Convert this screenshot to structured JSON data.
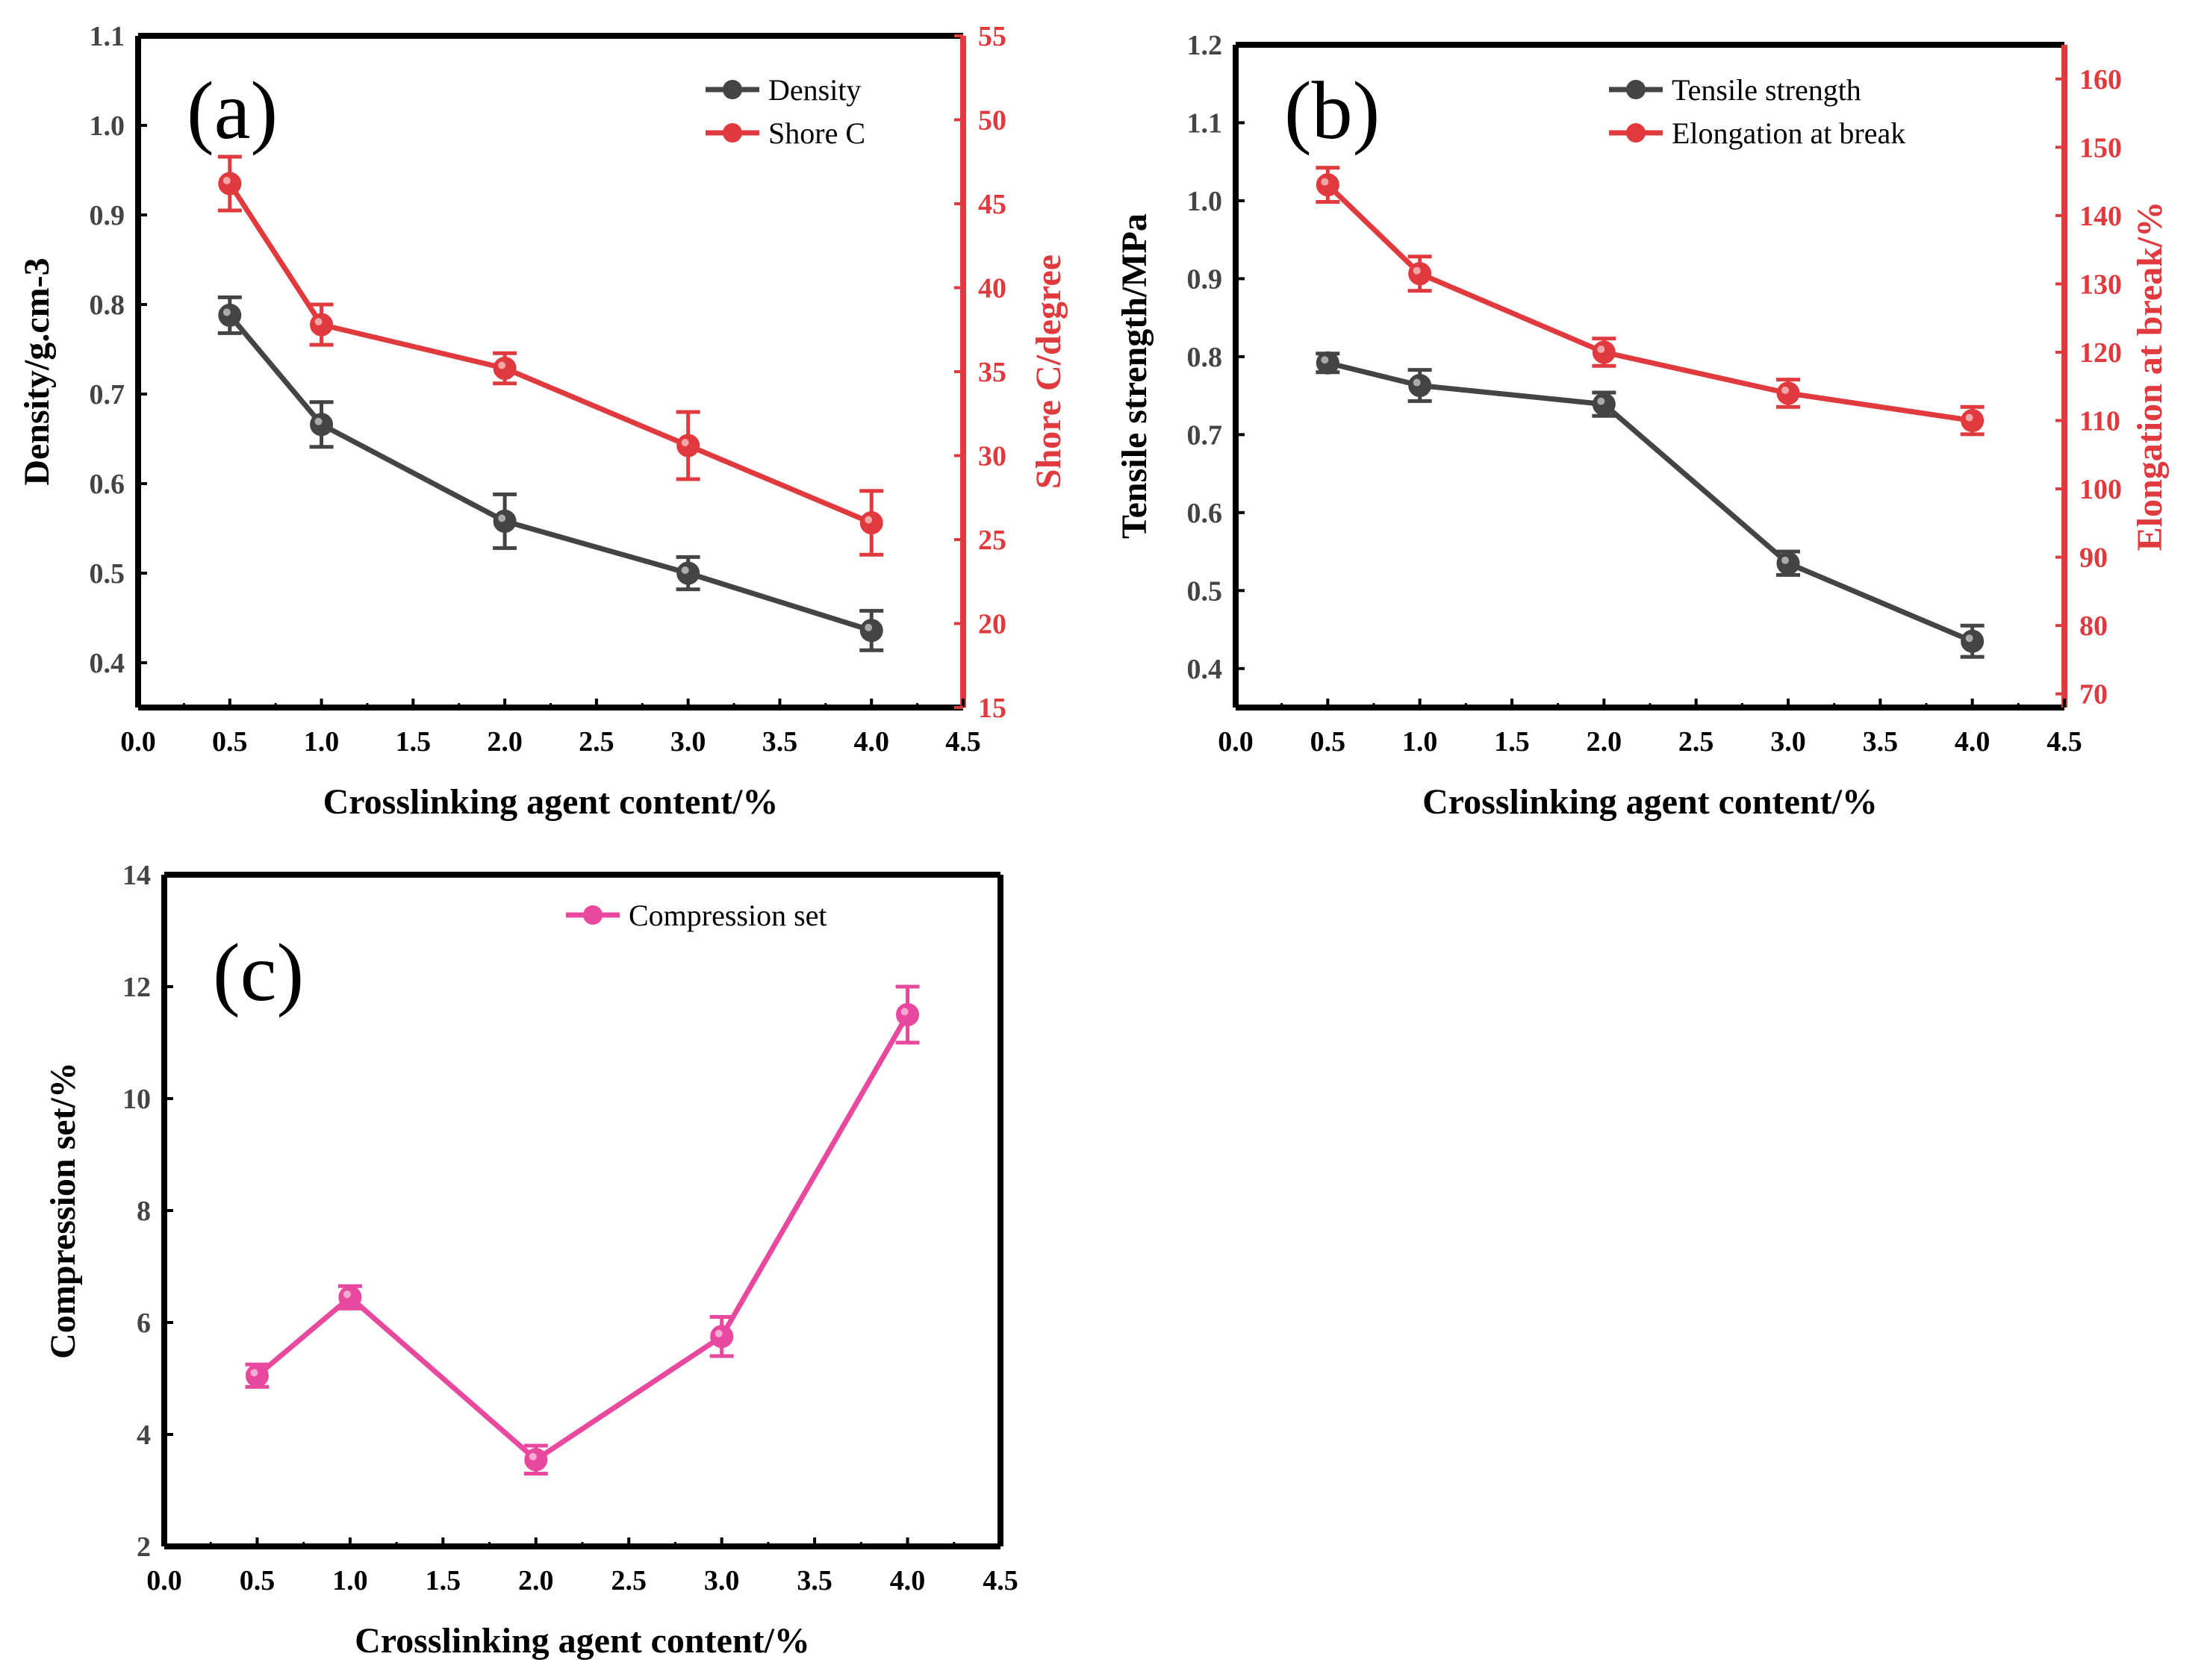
{
  "chart_data": [
    {
      "panel_label": "(a)",
      "type": "line",
      "xlabel": "Crosslinking agent content/%",
      "xlim": [
        0.0,
        4.5
      ],
      "xticks": [
        "0.0",
        "0.5",
        "1.0",
        "1.5",
        "2.0",
        "2.5",
        "3.0",
        "3.5",
        "4.0",
        "4.5"
      ],
      "ylabel": "Density/g.cm-3",
      "ylim": [
        0.35,
        1.1
      ],
      "yticks": [
        "0.4",
        "0.5",
        "0.6",
        "0.7",
        "0.8",
        "0.9",
        "1.0",
        "1.1"
      ],
      "y2label": "Shore C/degree",
      "y2lim": [
        15,
        55
      ],
      "y2ticks": [
        "15",
        "20",
        "25",
        "30",
        "35",
        "40",
        "45",
        "50",
        "55"
      ],
      "y2_color": "#e03a3e",
      "legend_position": "top-right",
      "grid": false,
      "series": [
        {
          "name": "Density",
          "axis": "left",
          "color": "#444444",
          "x": [
            0.5,
            1.0,
            2.0,
            3.0,
            4.0
          ],
          "values": [
            0.788,
            0.666,
            0.558,
            0.5,
            0.436
          ],
          "errors": [
            0.02,
            0.025,
            0.03,
            0.018,
            0.022
          ]
        },
        {
          "name": "Shore C",
          "axis": "right",
          "color": "#e03a3e",
          "x": [
            0.5,
            1.0,
            2.0,
            3.0,
            4.0
          ],
          "values": [
            46.2,
            37.8,
            35.2,
            30.6,
            26.0
          ],
          "errors": [
            1.6,
            1.2,
            0.9,
            2.0,
            1.9
          ]
        }
      ]
    },
    {
      "panel_label": "(b)",
      "type": "line",
      "xlabel": "Crosslinking agent content/%",
      "xlim": [
        0.0,
        4.5
      ],
      "xticks": [
        "0.0",
        "0.5",
        "1.0",
        "1.5",
        "2.0",
        "2.5",
        "3.0",
        "3.5",
        "4.0",
        "4.5"
      ],
      "ylabel": "Tensile strength/MPa",
      "ylim": [
        0.35,
        1.2
      ],
      "yticks": [
        "0.4",
        "0.5",
        "0.6",
        "0.7",
        "0.8",
        "0.9",
        "1.0",
        "1.1",
        "1.2"
      ],
      "y2label": "Elongation at break/%",
      "y2lim": [
        68,
        165
      ],
      "y2ticks": [
        "70",
        "80",
        "90",
        "100",
        "110",
        "120",
        "130",
        "140",
        "150",
        "160"
      ],
      "y2_color": "#e03a3e",
      "legend_position": "top-right",
      "grid": false,
      "series": [
        {
          "name": "Tensile strength",
          "axis": "left",
          "color": "#444444",
          "x": [
            0.5,
            1.0,
            2.0,
            3.0,
            4.0
          ],
          "values": [
            0.792,
            0.763,
            0.739,
            0.535,
            0.435
          ],
          "errors": [
            0.012,
            0.02,
            0.015,
            0.015,
            0.02
          ]
        },
        {
          "name": "Elongation at break",
          "axis": "right",
          "color": "#e03a3e",
          "x": [
            0.5,
            1.0,
            2.0,
            3.0,
            4.0
          ],
          "values": [
            144.5,
            131.5,
            120.0,
            114.0,
            110.0
          ],
          "errors": [
            2.5,
            2.5,
            2.0,
            2.0,
            2.0
          ]
        }
      ]
    },
    {
      "panel_label": "(c)",
      "type": "line",
      "xlabel": "Crosslinking agent content/%",
      "xlim": [
        0.0,
        4.5
      ],
      "xticks": [
        "0.0",
        "0.5",
        "1.0",
        "1.5",
        "2.0",
        "2.5",
        "3.0",
        "3.5",
        "4.0",
        "4.5"
      ],
      "ylabel": "Compression set/%",
      "ylim": [
        2,
        14
      ],
      "yticks": [
        "2",
        "4",
        "6",
        "8",
        "10",
        "12",
        "14"
      ],
      "legend_position": "top-right",
      "grid": false,
      "series": [
        {
          "name": "Compression set",
          "axis": "left",
          "color": "#e8489e",
          "x": [
            0.5,
            1.0,
            2.0,
            3.0,
            4.0
          ],
          "values": [
            5.05,
            6.45,
            3.55,
            5.75,
            11.5
          ],
          "errors": [
            0.2,
            0.2,
            0.25,
            0.35,
            0.5
          ]
        }
      ]
    }
  ]
}
